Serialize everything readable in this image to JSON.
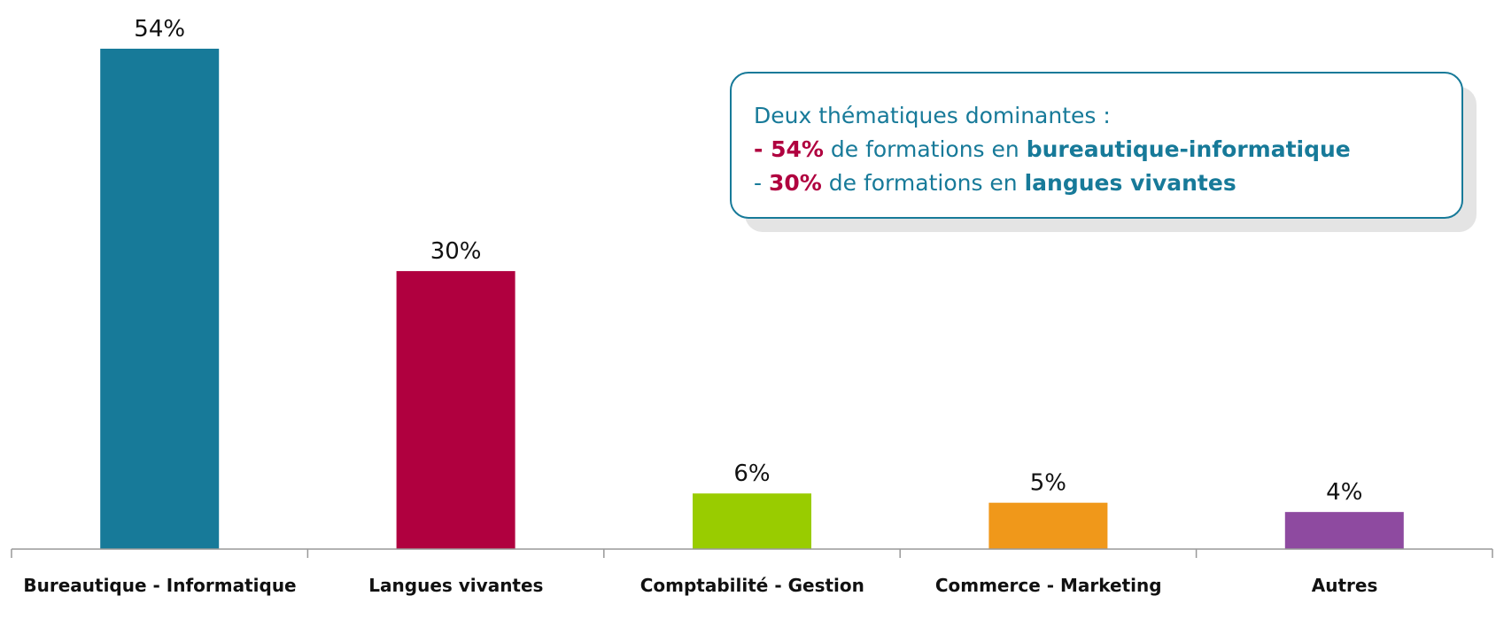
{
  "chart_data": {
    "type": "bar",
    "categories": [
      "Bureautique - Informatique",
      "Langues vivantes",
      "Comptabilité - Gestion",
      "Commerce - Marketing",
      "Autres"
    ],
    "values": [
      54,
      30,
      6,
      5,
      4
    ],
    "value_labels": [
      "54%",
      "30%",
      "6%",
      "5%",
      "4%"
    ],
    "colors": [
      "#177a99",
      "#b0003f",
      "#99cc00",
      "#f0981a",
      "#8e4aa0"
    ],
    "annotation": {
      "lines": [
        [
          "Deux thématiques dominantes :"
        ],
        [
          "- 54%",
          " de formations en ",
          "bureautique-informatique"
        ],
        [
          "- ",
          "30%",
          " de formations en ",
          "langues vivantes"
        ]
      ]
    }
  }
}
